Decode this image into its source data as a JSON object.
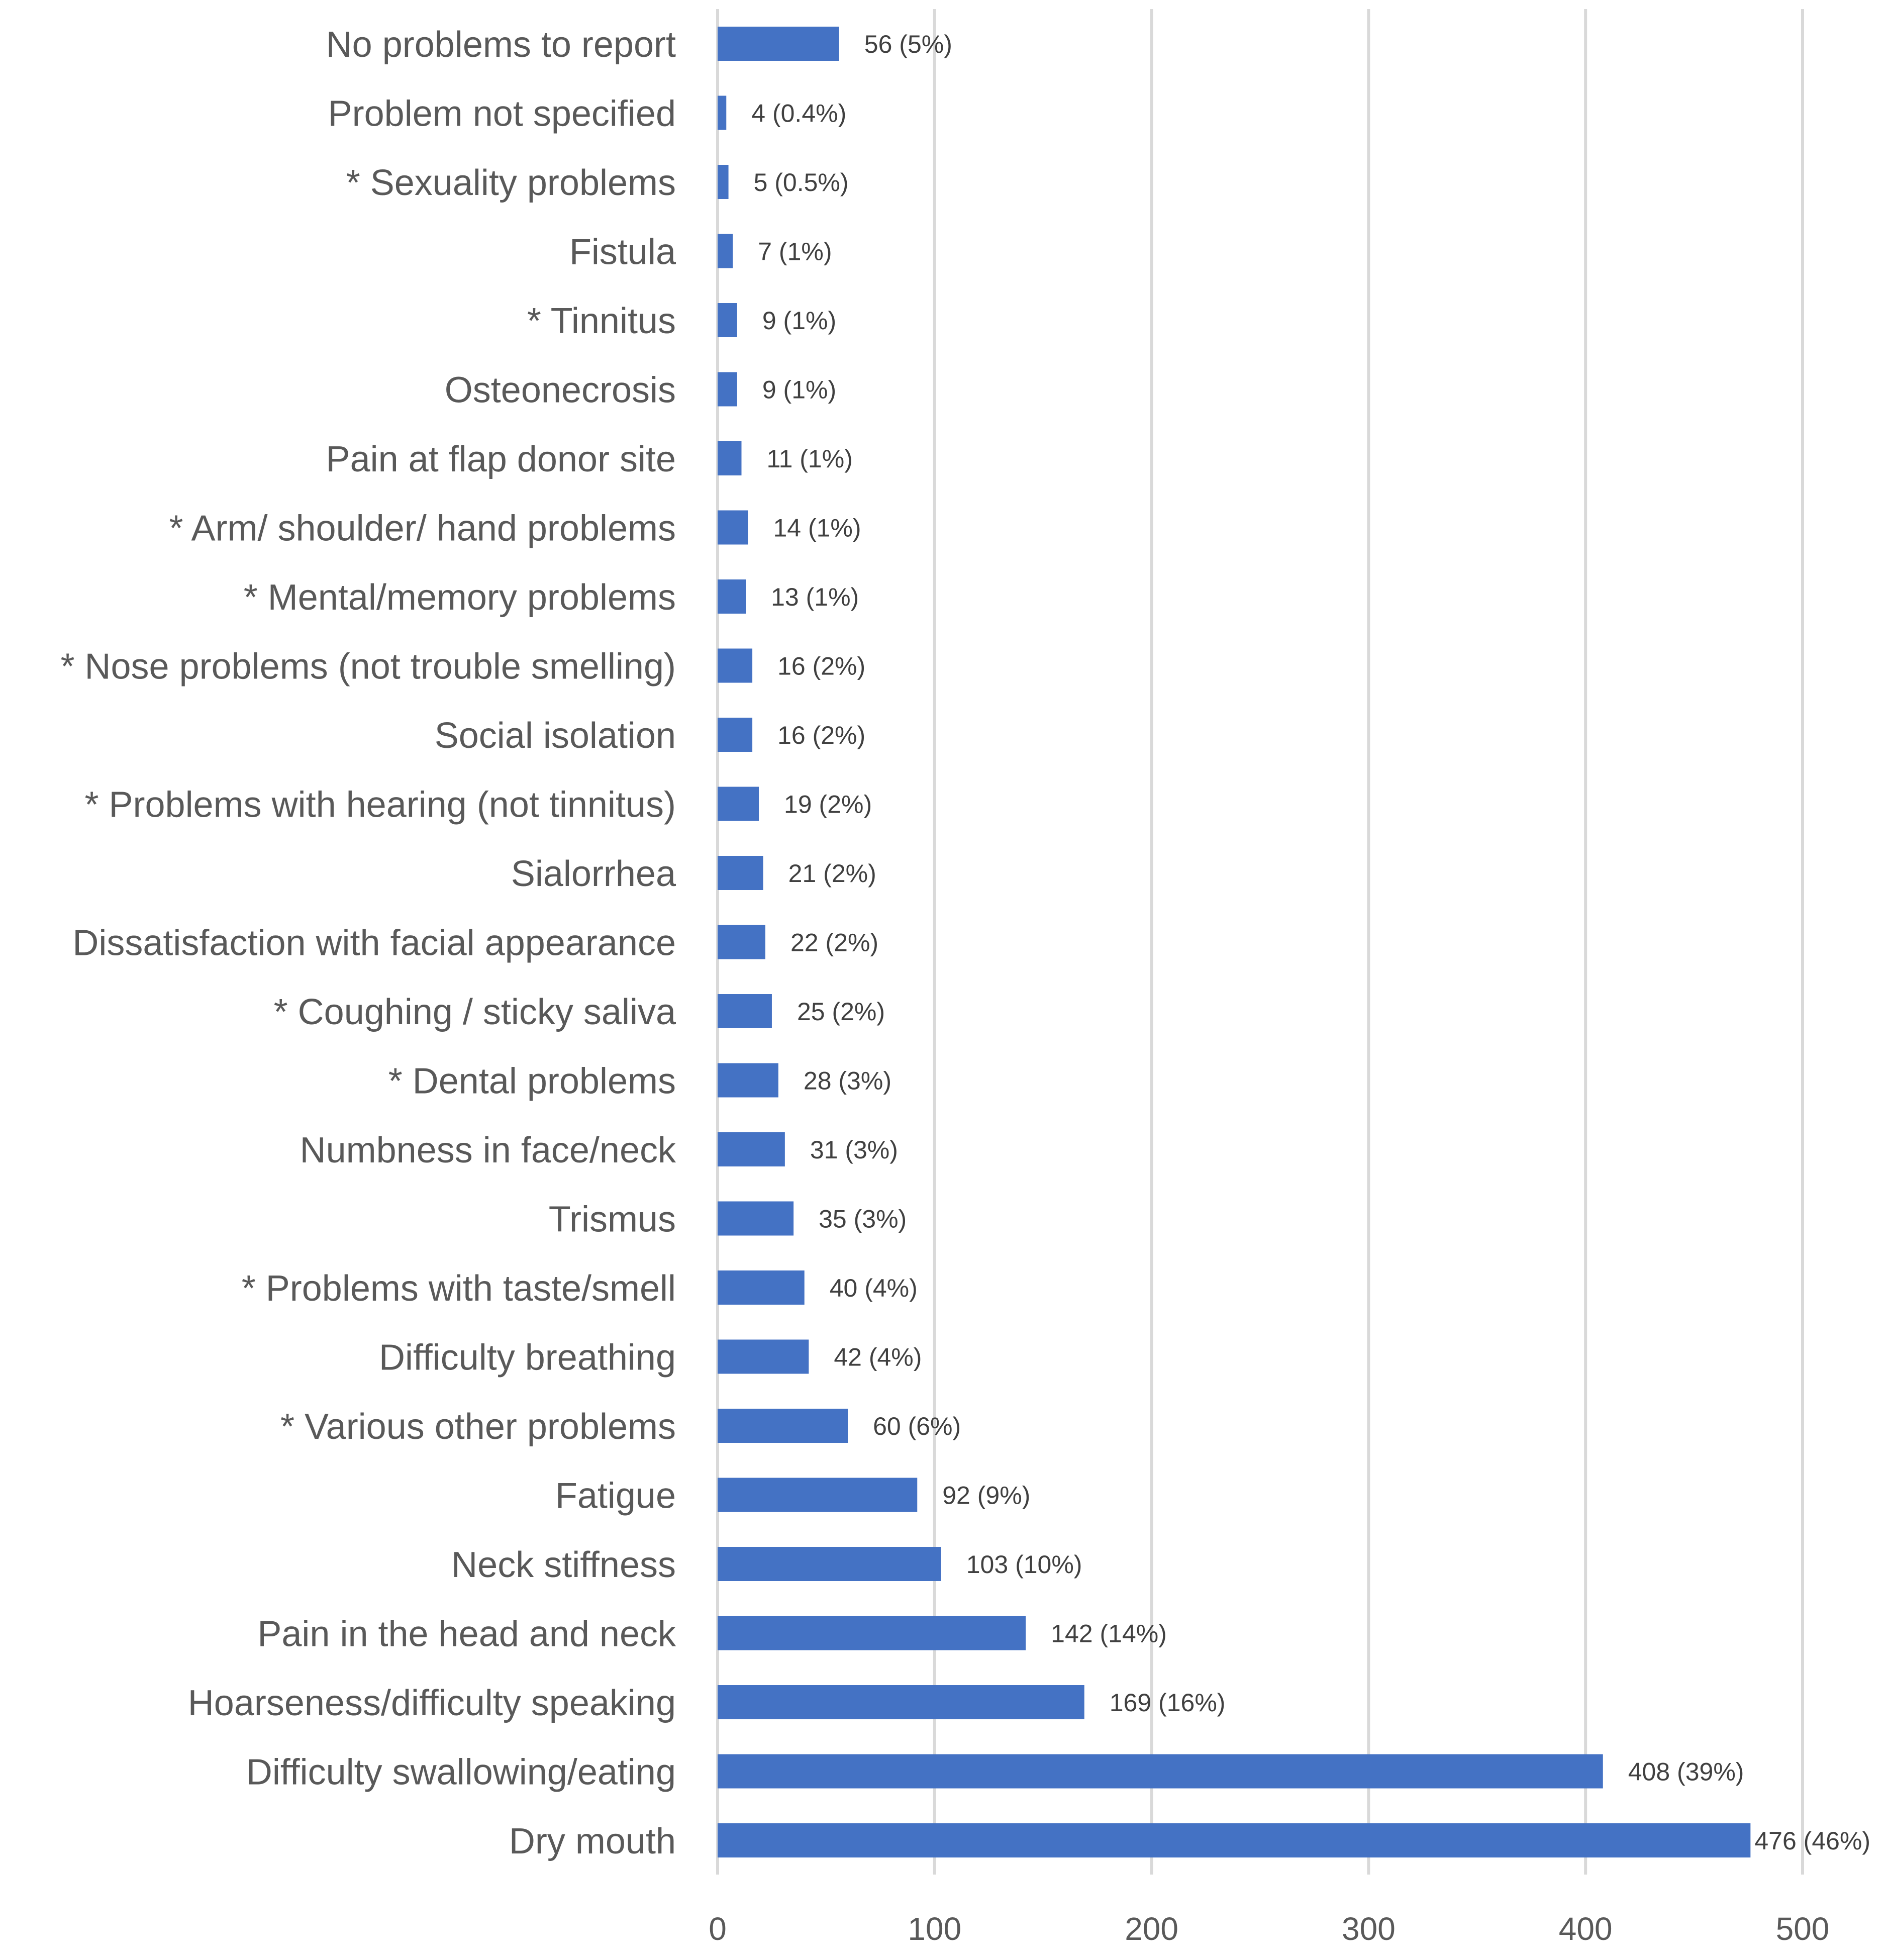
{
  "chart_data": {
    "type": "bar",
    "orientation": "horizontal",
    "title": "",
    "xlabel": "",
    "ylabel": "",
    "xlim": [
      0,
      500
    ],
    "xticks": [
      0,
      100,
      200,
      300,
      400,
      500
    ],
    "grid": true,
    "legend": "none",
    "bar_color": "#4472C4",
    "grid_color": "#D9D9D9",
    "categories": [
      "No problems to report",
      "Problem not specified",
      "* Sexuality problems",
      "Fistula",
      "* Tinnitus",
      "Osteonecrosis",
      "Pain at flap donor site",
      "* Arm/ shoulder/ hand problems",
      "* Mental/memory problems",
      "* Nose problems (not trouble smelling)",
      "Social isolation",
      "* Problems with hearing (not tinnitus)",
      "Sialorrhea",
      "Dissatisfaction with facial appearance",
      "* Coughing / sticky saliva",
      "* Dental problems",
      "Numbness in face/neck",
      "Trismus",
      "* Problems with taste/smell",
      "Difficulty breathing",
      "* Various other problems",
      "Fatigue",
      "Neck stiffness",
      "Pain in the head and neck",
      "Hoarseness/difficulty speaking",
      "Difficulty swallowing/eating",
      "Dry mouth"
    ],
    "values": [
      56,
      4,
      5,
      7,
      9,
      9,
      11,
      14,
      13,
      16,
      16,
      19,
      21,
      22,
      25,
      28,
      31,
      35,
      40,
      42,
      60,
      92,
      103,
      142,
      169,
      408,
      476
    ],
    "data_labels": [
      "56 (5%)",
      "4 (0.4%)",
      "5 (0.5%)",
      "7 (1%)",
      "9 (1%)",
      "9 (1%)",
      "11 (1%)",
      "14 (1%)",
      "13 (1%)",
      "16 (2%)",
      "16 (2%)",
      "19 (2%)",
      "21 (2%)",
      "22 (2%)",
      "25 (2%)",
      "28 (3%)",
      "31 (3%)",
      "35 (3%)",
      "40 (4%)",
      "42 (4%)",
      "60 (6%)",
      "92 (9%)",
      "103 (10%)",
      "142 (14%)",
      "169 (16%)",
      "408 (39%)",
      "476 (46%)"
    ]
  }
}
